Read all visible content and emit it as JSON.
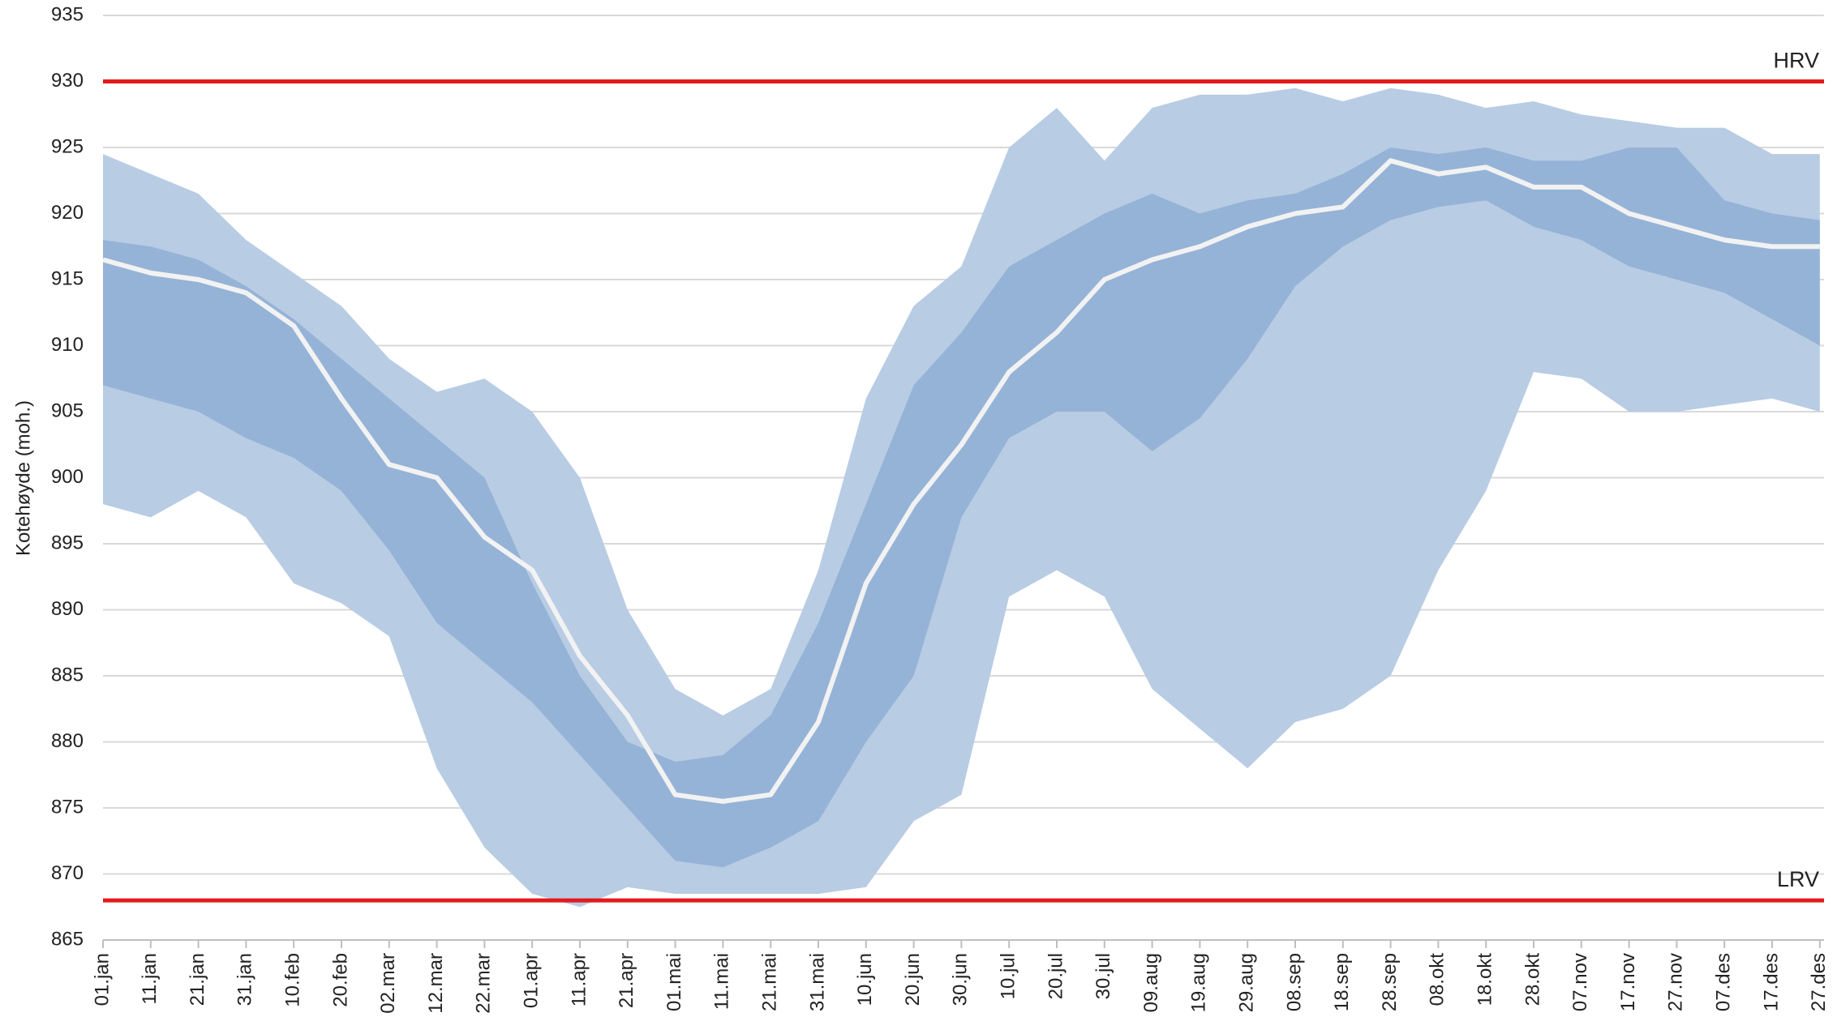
{
  "chart_data": {
    "type": "band",
    "ylabel": "Kotehøyde (moh.)",
    "categories": [
      "01.jan",
      "11.jan",
      "21.jan",
      "31.jan",
      "10.feb",
      "20.feb",
      "02.mar",
      "12.mar",
      "22.mar",
      "01.apr",
      "11.apr",
      "21.apr",
      "01.mai",
      "11.mai",
      "21.mai",
      "31.mai",
      "10.jun",
      "20.jun",
      "30.jun",
      "10.jul",
      "20.jul",
      "30.jul",
      "09.aug",
      "19.aug",
      "29.aug",
      "08.sep",
      "18.sep",
      "28.sep",
      "08.okt",
      "18.okt",
      "28.okt",
      "07.nov",
      "17.nov",
      "27.nov",
      "07.des",
      "17.des",
      "27.des"
    ],
    "bands": [
      {
        "color": "#b8cce4",
        "upper": [
          924.5,
          923,
          921.5,
          918,
          915.5,
          913,
          909,
          906.5,
          907.5,
          905,
          900,
          890,
          884,
          882,
          884,
          893,
          906,
          913,
          916,
          925,
          928,
          924,
          928,
          929,
          929,
          929.5,
          928.5,
          929.5,
          929,
          928,
          928.5,
          927.5,
          927,
          926.5,
          926.5,
          924.5,
          924.5
        ],
        "lower": [
          898,
          897,
          899,
          897,
          892,
          890.5,
          888,
          878,
          872,
          868.5,
          867.5,
          869,
          868.5,
          868.5,
          868.5,
          868.5,
          869,
          874,
          876,
          891,
          893,
          891,
          884,
          881,
          878,
          881.5,
          882.5,
          885,
          893,
          899,
          908,
          907.5,
          905,
          905,
          905.5,
          906,
          905
        ]
      },
      {
        "color": "#95b3d7",
        "upper": [
          918,
          917.5,
          916.5,
          914.5,
          912,
          909,
          906,
          903,
          900,
          892,
          885,
          880,
          878.5,
          879,
          882,
          889,
          898,
          907,
          911,
          916,
          918,
          920,
          921.5,
          920,
          921,
          921.5,
          923,
          925,
          924.5,
          925,
          924,
          924,
          925,
          925,
          921,
          920,
          919.5
        ],
        "lower": [
          907,
          906,
          905,
          903,
          901.5,
          899,
          894.5,
          889,
          886,
          883,
          879,
          875,
          871,
          870.5,
          872,
          874,
          880,
          885,
          897,
          903,
          905,
          905,
          902,
          904.5,
          909,
          914.5,
          917.5,
          919.5,
          920.5,
          921,
          919,
          918,
          916,
          915,
          914,
          912,
          910
        ]
      }
    ],
    "line": {
      "color": "#f2f2f2",
      "values": [
        916.5,
        915.5,
        915,
        914,
        911.5,
        906,
        901,
        900,
        895.5,
        893,
        886.5,
        882,
        876,
        875.5,
        876,
        881.5,
        892,
        898,
        902.5,
        908,
        911,
        915,
        916.5,
        917.5,
        919,
        920,
        920.5,
        924,
        923,
        923.5,
        922,
        922,
        920,
        919,
        918,
        917.5,
        917.5
      ]
    },
    "reference_lines": [
      {
        "label": "HRV",
        "value": 930,
        "color": "#e31a1c"
      },
      {
        "label": "LRV",
        "value": 868,
        "color": "#e31a1c"
      }
    ],
    "ylim": [
      865,
      935
    ],
    "yticks": [
      865,
      870,
      875,
      880,
      885,
      890,
      895,
      900,
      905,
      910,
      915,
      920,
      925,
      930,
      935
    ],
    "grid": true
  }
}
